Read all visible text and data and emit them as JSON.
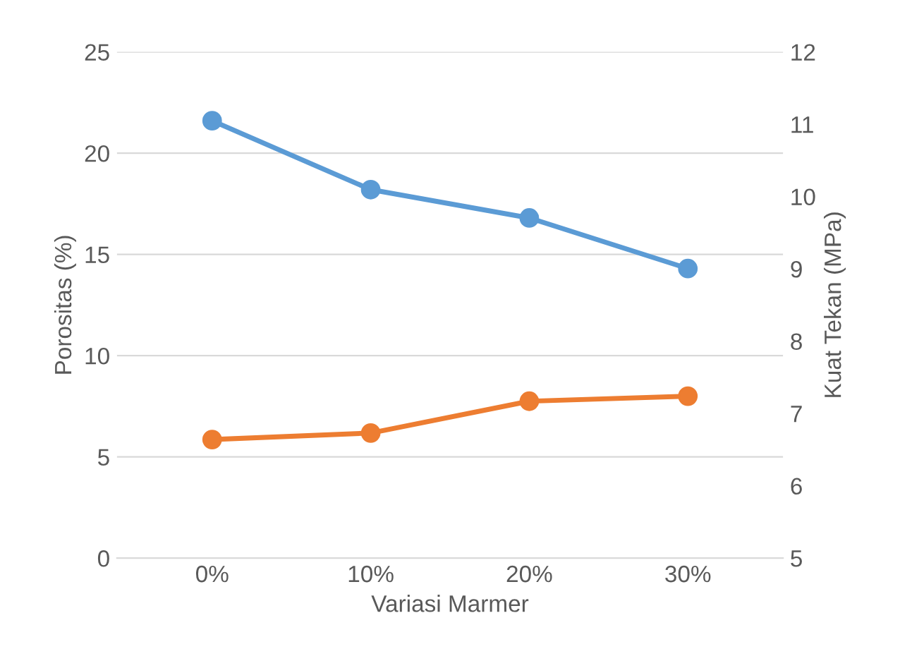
{
  "chart_data": {
    "type": "line",
    "xlabel": "Variasi Marmer",
    "ylabel": "Porositas (%)",
    "y2label": "Kuat Tekan (MPa)",
    "categories": [
      "0%",
      "10%",
      "20%",
      "30%"
    ],
    "series": [
      {
        "color": "#5b9bd5",
        "values": [
          21.6,
          18.2,
          16.8,
          14.3
        ]
      },
      {
        "color": "#ed7d31",
        "values": [
          6.64,
          6.73,
          7.17,
          7.24
        ],
        "axis": "y2"
      }
    ],
    "ylim": [
      0,
      25
    ],
    "yticks": [
      0,
      5,
      10,
      15,
      20,
      25
    ],
    "y2lim": [
      5,
      12
    ],
    "y2ticks": [
      5,
      6,
      7,
      8,
      9,
      10,
      11,
      12
    ],
    "grid": "y",
    "marker": "circle",
    "line_style": "solid",
    "legend": false
  }
}
